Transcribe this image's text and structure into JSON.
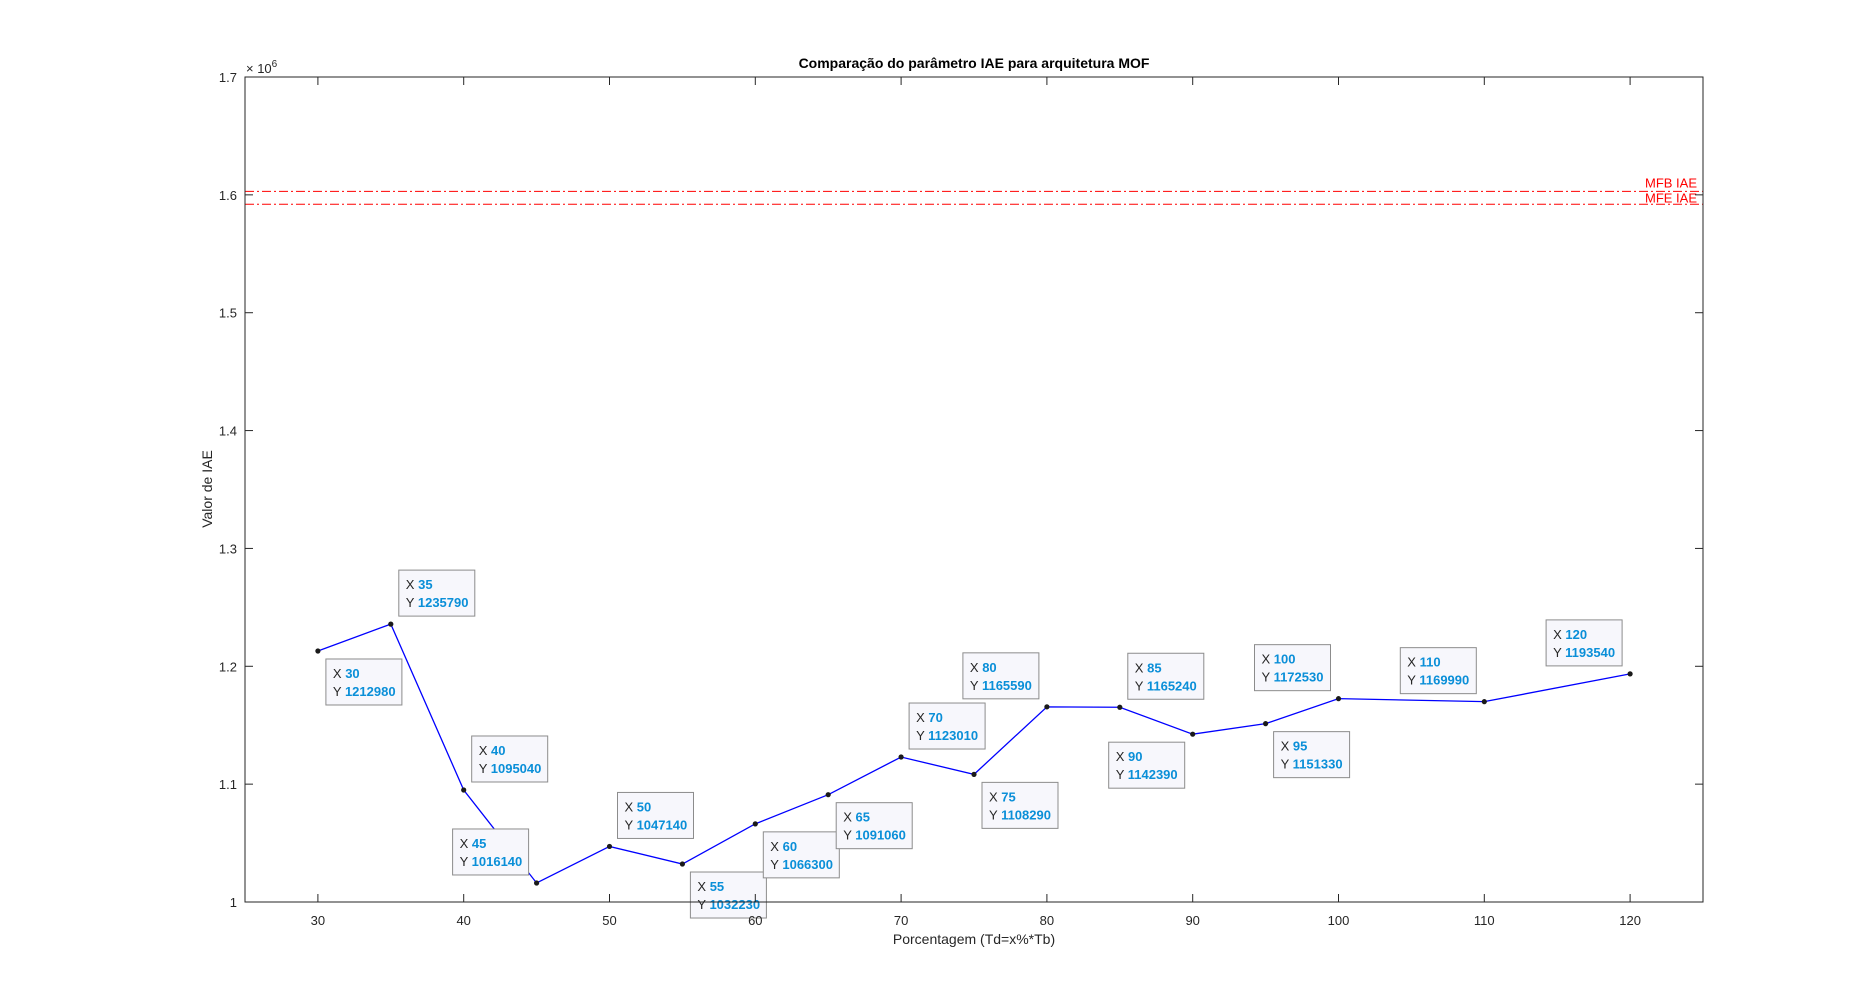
{
  "chart_data": {
    "type": "line",
    "title": "Comparação do parâmetro IAE para arquitetura MOF",
    "xlabel": "Porcentagem (Td=x%*Tb)",
    "ylabel": "Valor de IAE",
    "y_exponent_label": "× 10",
    "y_exponent_power": "6",
    "xlim": [
      25,
      125
    ],
    "ylim": [
      1000000,
      1700000
    ],
    "x_ticks": [
      30,
      40,
      50,
      60,
      70,
      80,
      90,
      100,
      110,
      120
    ],
    "x_tick_labels": [
      "30",
      "40",
      "50",
      "60",
      "70",
      "80",
      "90",
      "100",
      "110",
      "120"
    ],
    "y_ticks": [
      1000000,
      1100000,
      1200000,
      1300000,
      1400000,
      1500000,
      1600000,
      1700000
    ],
    "y_tick_labels": [
      "1",
      "1.1",
      "1.2",
      "1.3",
      "1.4",
      "1.5",
      "1.6",
      "1.7"
    ],
    "grid": false,
    "line_color": "#0000ff",
    "reference_color": "#ff0000",
    "series": [
      {
        "x": [
          30,
          35,
          40,
          45,
          50,
          55,
          60,
          65,
          70,
          75,
          80,
          85,
          90,
          95,
          100,
          110,
          120
        ],
        "y": [
          1212980,
          1235790,
          1095040,
          1016140,
          1047140,
          1032230,
          1066300,
          1091060,
          1123010,
          1108290,
          1165590,
          1165240,
          1142390,
          1151330,
          1172530,
          1169990,
          1193540
        ]
      }
    ],
    "reference_lines": [
      {
        "name": "MFB IAE",
        "y": 1603000
      },
      {
        "name": "MFE IAE",
        "y": 1592000
      }
    ],
    "datatips": [
      {
        "x_label": "X",
        "y_label": "Y",
        "x": "30",
        "y": "1212980",
        "placement": "below-right"
      },
      {
        "x_label": "X",
        "y_label": "Y",
        "x": "35",
        "y": "1235790",
        "placement": "above-right"
      },
      {
        "x_label": "X",
        "y_label": "Y",
        "x": "40",
        "y": "1095040",
        "placement": "above-right"
      },
      {
        "x_label": "X",
        "y_label": "Y",
        "x": "45",
        "y": "1016140",
        "placement": "above-left"
      },
      {
        "x_label": "X",
        "y_label": "Y",
        "x": "50",
        "y": "1047140",
        "placement": "above-right"
      },
      {
        "x_label": "X",
        "y_label": "Y",
        "x": "55",
        "y": "1032230",
        "placement": "below-right"
      },
      {
        "x_label": "X",
        "y_label": "Y",
        "x": "60",
        "y": "1066300",
        "placement": "below-right"
      },
      {
        "x_label": "X",
        "y_label": "Y",
        "x": "65",
        "y": "1091060",
        "placement": "below-right"
      },
      {
        "x_label": "X",
        "y_label": "Y",
        "x": "70",
        "y": "1123010",
        "placement": "above-right"
      },
      {
        "x_label": "X",
        "y_label": "Y",
        "x": "75",
        "y": "1108290",
        "placement": "below-right"
      },
      {
        "x_label": "X",
        "y_label": "Y",
        "x": "80",
        "y": "1165590",
        "placement": "above-left"
      },
      {
        "x_label": "X",
        "y_label": "Y",
        "x": "85",
        "y": "1165240",
        "placement": "above-right"
      },
      {
        "x_label": "X",
        "y_label": "Y",
        "x": "90",
        "y": "1142390",
        "placement": "below-left"
      },
      {
        "x_label": "X",
        "y_label": "Y",
        "x": "95",
        "y": "1151330",
        "placement": "below-right"
      },
      {
        "x_label": "X",
        "y_label": "Y",
        "x": "100",
        "y": "1172530",
        "placement": "above-left"
      },
      {
        "x_label": "X",
        "y_label": "Y",
        "x": "110",
        "y": "1169990",
        "placement": "above-left"
      },
      {
        "x_label": "X",
        "y_label": "Y",
        "x": "120",
        "y": "1193540",
        "placement": "above-left"
      }
    ]
  }
}
